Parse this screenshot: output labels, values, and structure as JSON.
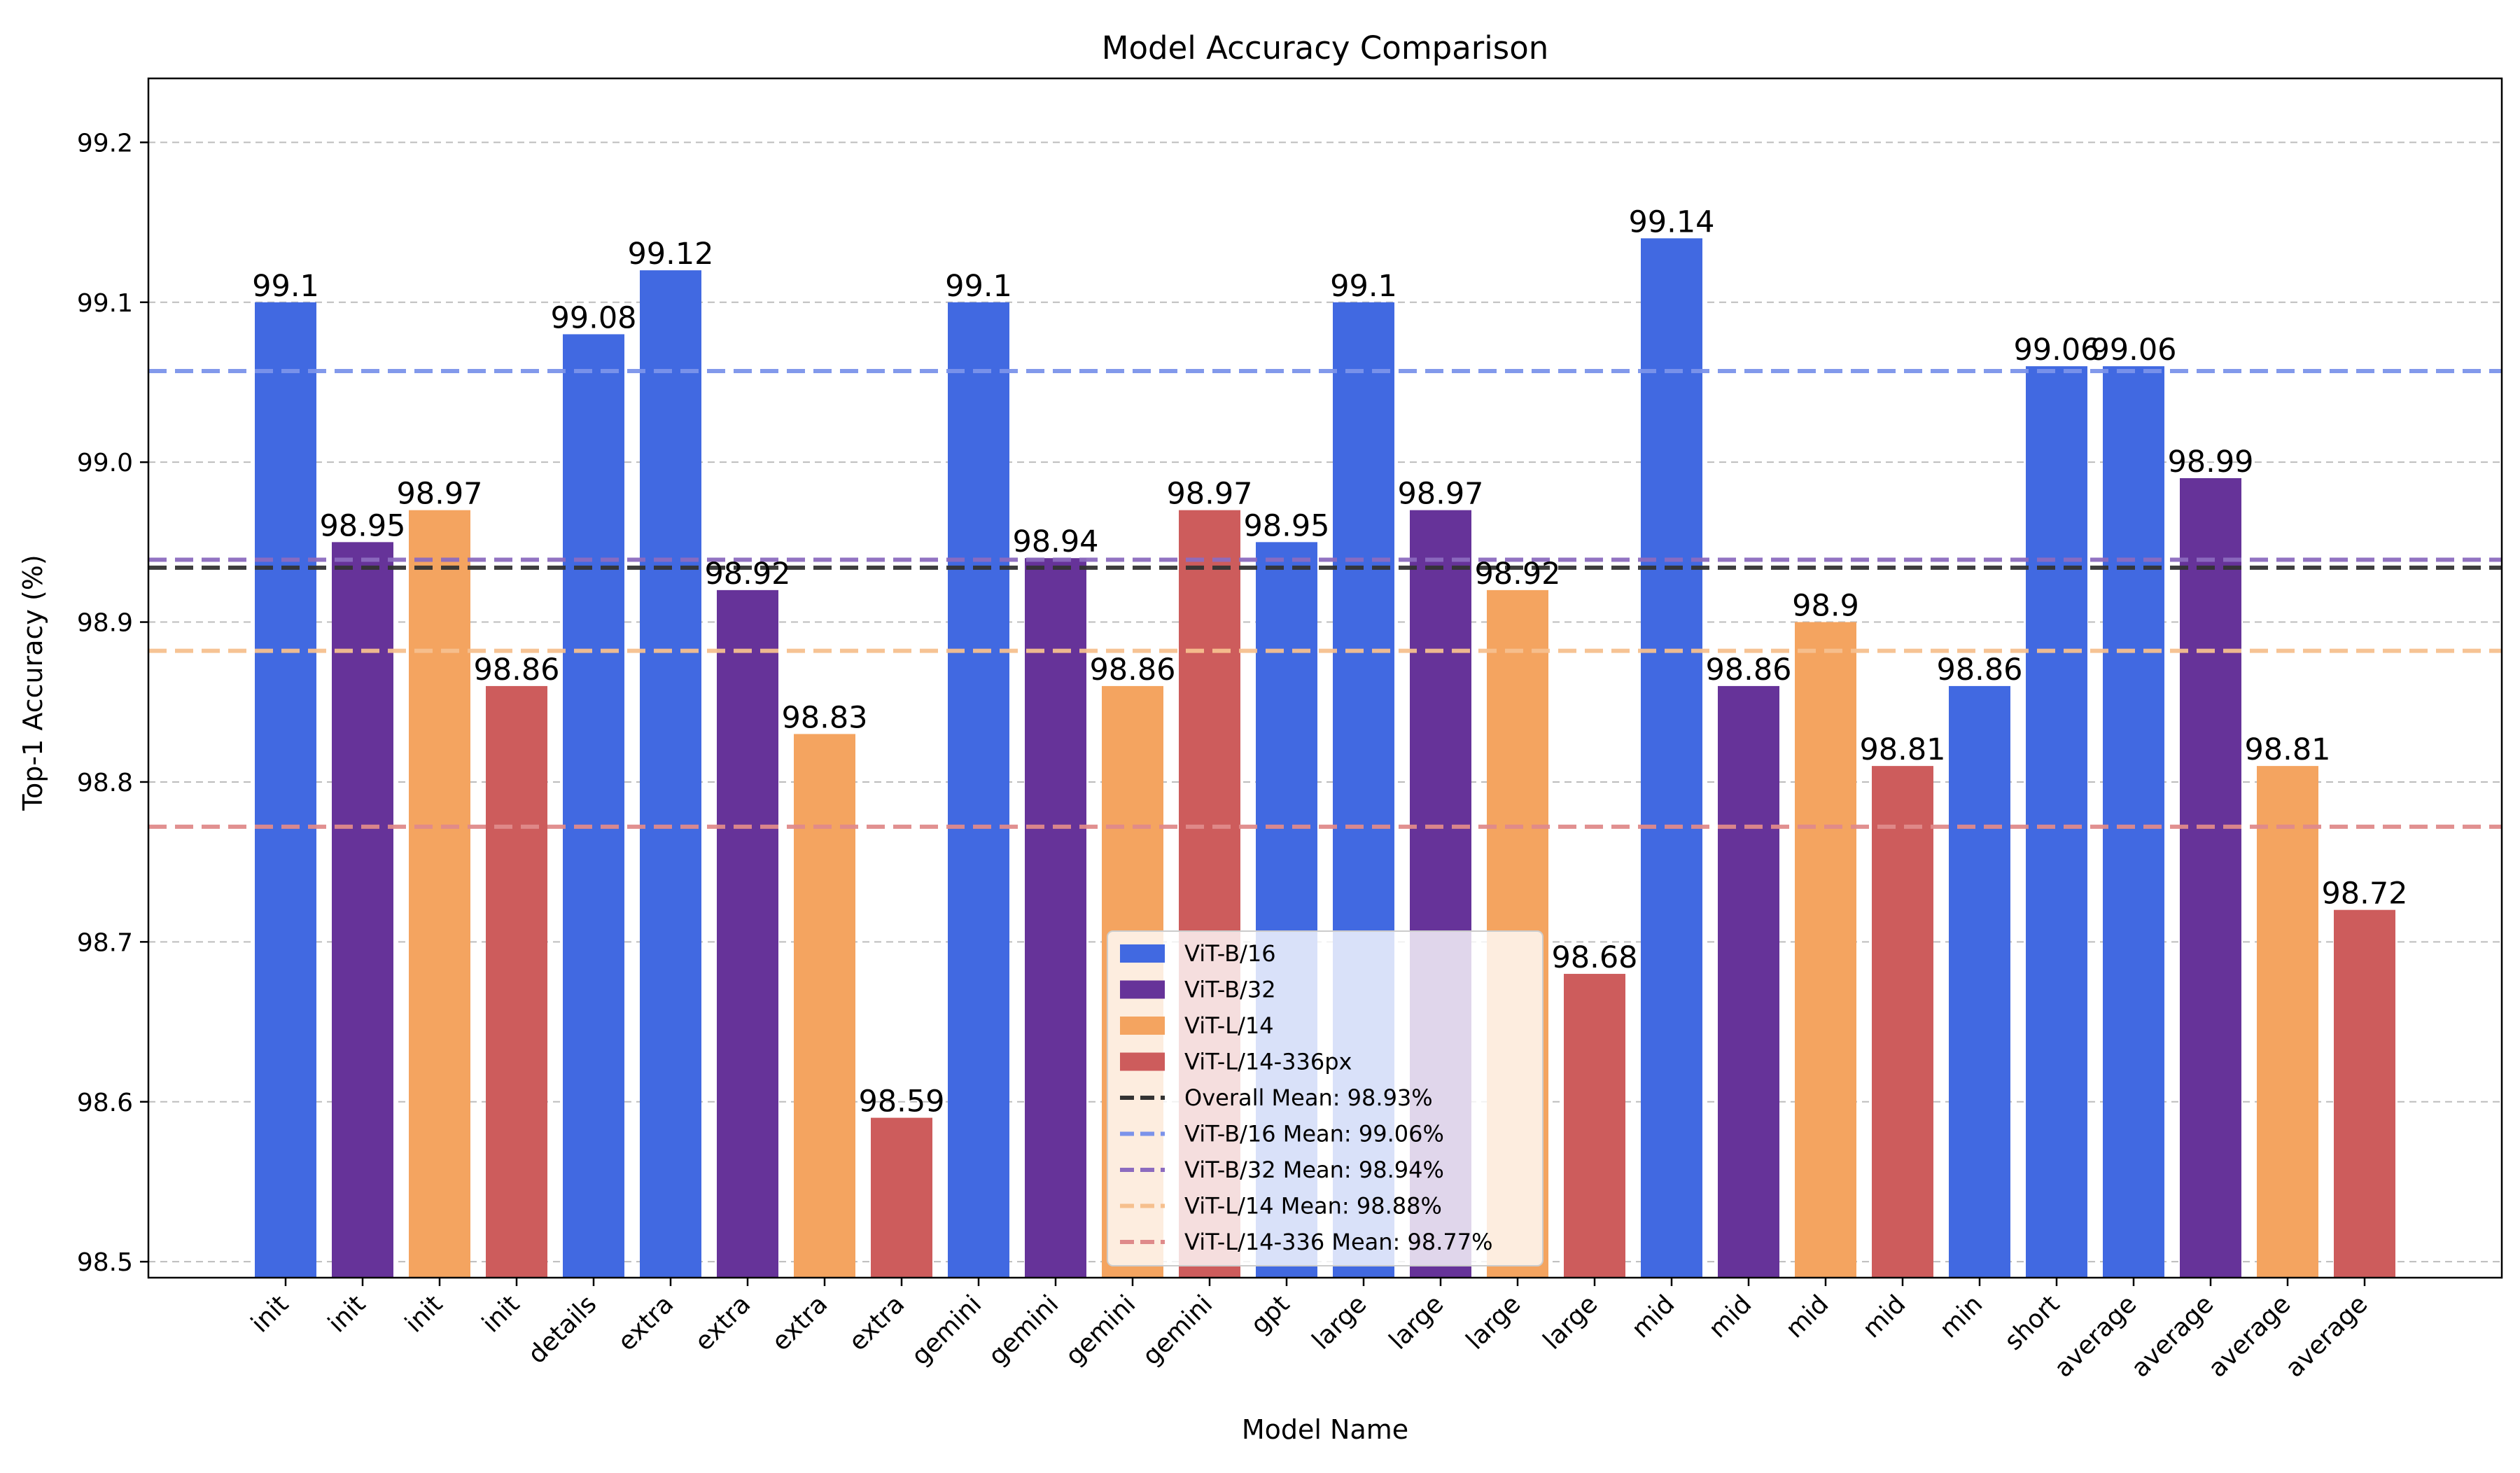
{
  "chart_data": {
    "type": "bar",
    "title": "Model  Accuracy Comparison",
    "xlabel": "Model Name",
    "ylabel": "Top-1 Accuracy (%)",
    "ylim": [
      98.49,
      99.24
    ],
    "yticks": [
      98.5,
      98.6,
      98.7,
      98.8,
      98.9,
      99.0,
      99.1,
      99.2
    ],
    "ytick_labels": [
      "98.5",
      "98.6",
      "98.7",
      "98.8",
      "98.9",
      "99.0",
      "99.1",
      "99.2"
    ],
    "grid": "y-dashed",
    "legend_position": "lower-center",
    "colors": {
      "ViT-B/16": "#4169e1",
      "ViT-B/32": "#663399",
      "ViT-L/14": "#f4a460",
      "ViT-L/14-336px": "#cd5c5c",
      "overall_mean": "#333333"
    },
    "bars": [
      {
        "category": "init",
        "series": "ViT-B/16",
        "value": 99.1,
        "label": "99.1"
      },
      {
        "category": "init",
        "series": "ViT-B/32",
        "value": 98.95,
        "label": "98.95"
      },
      {
        "category": "init",
        "series": "ViT-L/14",
        "value": 98.97,
        "label": "98.97"
      },
      {
        "category": "init",
        "series": "ViT-L/14-336px",
        "value": 98.86,
        "label": "98.86"
      },
      {
        "category": "details",
        "series": "ViT-B/16",
        "value": 99.08,
        "label": "99.08"
      },
      {
        "category": "extra",
        "series": "ViT-B/16",
        "value": 99.12,
        "label": "99.12"
      },
      {
        "category": "extra",
        "series": "ViT-B/32",
        "value": 98.92,
        "label": "98.92"
      },
      {
        "category": "extra",
        "series": "ViT-L/14",
        "value": 98.83,
        "label": "98.83"
      },
      {
        "category": "extra",
        "series": "ViT-L/14-336px",
        "value": 98.59,
        "label": "98.59"
      },
      {
        "category": "gemini",
        "series": "ViT-B/16",
        "value": 99.1,
        "label": "99.1"
      },
      {
        "category": "gemini",
        "series": "ViT-B/32",
        "value": 98.94,
        "label": "98.94"
      },
      {
        "category": "gemini",
        "series": "ViT-L/14",
        "value": 98.86,
        "label": "98.86"
      },
      {
        "category": "gemini",
        "series": "ViT-L/14-336px",
        "value": 98.97,
        "label": "98.97"
      },
      {
        "category": "gpt",
        "series": "ViT-B/16",
        "value": 98.95,
        "label": "98.95"
      },
      {
        "category": "large",
        "series": "ViT-B/16",
        "value": 99.1,
        "label": "99.1"
      },
      {
        "category": "large",
        "series": "ViT-B/32",
        "value": 98.97,
        "label": "98.97"
      },
      {
        "category": "large",
        "series": "ViT-L/14",
        "value": 98.92,
        "label": "98.92"
      },
      {
        "category": "large",
        "series": "ViT-L/14-336px",
        "value": 98.68,
        "label": "98.68"
      },
      {
        "category": "mid",
        "series": "ViT-B/16",
        "value": 99.14,
        "label": "99.14"
      },
      {
        "category": "mid",
        "series": "ViT-B/32",
        "value": 98.86,
        "label": "98.86"
      },
      {
        "category": "mid",
        "series": "ViT-L/14",
        "value": 98.9,
        "label": "98.9"
      },
      {
        "category": "mid",
        "series": "ViT-L/14-336px",
        "value": 98.81,
        "label": "98.81"
      },
      {
        "category": "min",
        "series": "ViT-B/16",
        "value": 98.86,
        "label": "98.86"
      },
      {
        "category": "short",
        "series": "ViT-B/16",
        "value": 99.06,
        "label": "99.06"
      },
      {
        "category": "average",
        "series": "ViT-B/16",
        "value": 99.06,
        "label": "99.06"
      },
      {
        "category": "average",
        "series": "ViT-B/32",
        "value": 98.99,
        "label": "98.99"
      },
      {
        "category": "average",
        "series": "ViT-L/14",
        "value": 98.81,
        "label": "98.81"
      },
      {
        "category": "average",
        "series": "ViT-L/14-336px",
        "value": 98.72,
        "label": "98.72"
      }
    ],
    "mean_lines": [
      {
        "name": "Overall Mean: 98.93%",
        "value": 98.934,
        "color": "#333333",
        "style": "dashed"
      },
      {
        "name": "ViT-B/16  Mean: 99.06%",
        "value": 99.057,
        "color": "#7b93ea",
        "style": "dashed"
      },
      {
        "name": "ViT-B/32  Mean: 98.94%",
        "value": 98.939,
        "color": "#8c6bbf",
        "style": "dashed"
      },
      {
        "name": "ViT-L/14  Mean: 98.88%",
        "value": 98.882,
        "color": "#f6c08e",
        "style": "dashed"
      },
      {
        "name": "ViT-L/14-336  Mean: 98.77%",
        "value": 98.772,
        "color": "#df8a8a",
        "style": "dashed"
      }
    ],
    "legend": [
      {
        "label": "ViT-B/16",
        "kind": "patch",
        "color": "#4169e1"
      },
      {
        "label": "ViT-B/32",
        "kind": "patch",
        "color": "#663399"
      },
      {
        "label": "ViT-L/14",
        "kind": "patch",
        "color": "#f4a460"
      },
      {
        "label": "ViT-L/14-336px",
        "kind": "patch",
        "color": "#cd5c5c"
      },
      {
        "label": "Overall Mean: 98.93%",
        "kind": "line",
        "color": "#333333"
      },
      {
        "label": "ViT-B/16  Mean: 99.06%",
        "kind": "line",
        "color": "#7b93ea"
      },
      {
        "label": "ViT-B/32  Mean: 98.94%",
        "kind": "line",
        "color": "#8c6bbf"
      },
      {
        "label": "ViT-L/14  Mean: 98.88%",
        "kind": "line",
        "color": "#f6c08e"
      },
      {
        "label": "ViT-L/14-336  Mean: 98.77%",
        "kind": "line",
        "color": "#df8a8a"
      }
    ]
  }
}
